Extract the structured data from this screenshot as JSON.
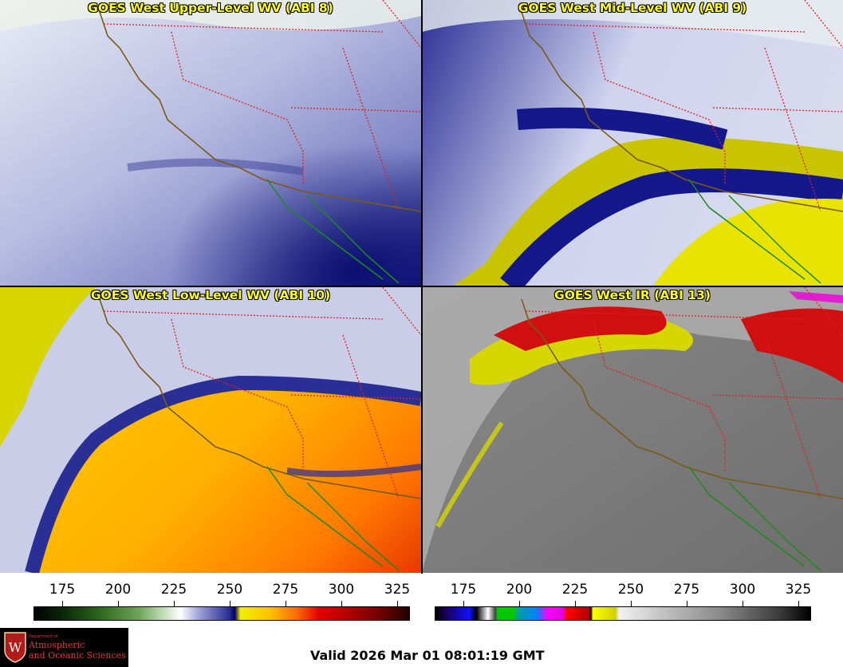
{
  "panels": {
    "upper_wv": {
      "title": "GOES West Upper-Level WV (ABI 8)"
    },
    "mid_wv": {
      "title": "GOES West Mid-Level WV (ABI 9)"
    },
    "low_wv": {
      "title": "GOES West Low-Level WV (ABI 10)"
    },
    "ir": {
      "title": "GOES West IR (ABI 13)"
    }
  },
  "colorbars": {
    "wv": {
      "ticks": [
        "175",
        "200",
        "225",
        "250",
        "275",
        "300",
        "325"
      ]
    },
    "ir": {
      "ticks": [
        "175",
        "200",
        "225",
        "250",
        "275",
        "300",
        "325"
      ]
    }
  },
  "logo": {
    "small": "Department of",
    "line1": "Atmospheric",
    "line2": "and Oceanic Sciences"
  },
  "footer": {
    "valid": "Valid 2026 Mar 01 08:01:19 GMT"
  },
  "colors": {
    "title": "#ffff22",
    "state_border": "#e02020",
    "coastline": "#7a5a18",
    "mexico_coast": "#1f8a1f"
  }
}
